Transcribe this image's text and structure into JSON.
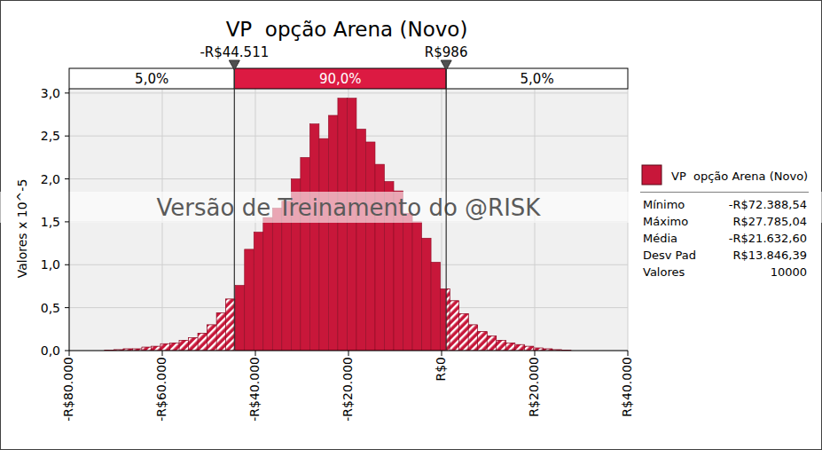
{
  "chart_data": {
    "type": "histogram",
    "title": "VP  opção Arena (Novo)",
    "ylabel": "Valores x 10^-5",
    "series": [
      {
        "name": "VP  opção Arena (Novo)",
        "color": "#c8173a",
        "values": [
          0.005,
          0.01,
          0.02,
          0.02,
          0.04,
          0.05,
          0.08,
          0.09,
          0.12,
          0.15,
          0.2,
          0.3,
          0.44,
          0.6,
          0.76,
          1.18,
          1.38,
          1.55,
          1.66,
          1.74,
          2.0,
          2.25,
          2.64,
          2.47,
          2.74,
          2.94,
          2.94,
          2.58,
          2.43,
          2.17,
          1.97,
          1.86,
          1.6,
          1.5,
          1.31,
          1.03,
          0.72,
          0.58,
          0.43,
          0.3,
          0.22,
          0.17,
          0.12,
          0.09,
          0.07,
          0.05,
          0.03,
          0.02,
          0.01,
          0.005
        ]
      }
    ],
    "bins": [
      -72389,
      -70385,
      -68382,
      -66378,
      -64375,
      -62371,
      -60368,
      -58364,
      -56361,
      -54357,
      -52354,
      -50350,
      -48347,
      -46343,
      -44340,
      -42336,
      -40333,
      -38330,
      -36326,
      -34323,
      -32319,
      -30316,
      -28312,
      -26309,
      -24305,
      -22302,
      -20298,
      -18295,
      -16291,
      -14288,
      -12284,
      -10281,
      -8278,
      -6274,
      -4271,
      -2267,
      -264,
      1740,
      3743,
      5747,
      7750,
      9754,
      11757,
      13761,
      15764,
      17768,
      19771,
      21775,
      23778,
      25781,
      27785
    ],
    "xlim": [
      -80000,
      40000
    ],
    "xticks": [
      {
        "value": -80000,
        "label": "-R$80.000"
      },
      {
        "value": -60000,
        "label": "-R$60.000"
      },
      {
        "value": -40000,
        "label": "-R$40.000"
      },
      {
        "value": -20000,
        "label": "-R$20.000"
      },
      {
        "value": 0,
        "label": "R$0"
      },
      {
        "value": 20000,
        "label": "R$20.000"
      },
      {
        "value": 40000,
        "label": "R$40.000"
      }
    ],
    "ylim": [
      0,
      3.05
    ],
    "yticks": [
      {
        "value": 0,
        "label": "0,0"
      },
      {
        "value": 0.5,
        "label": "0,5"
      },
      {
        "value": 1,
        "label": "1,0"
      },
      {
        "value": 1.5,
        "label": "1,5"
      },
      {
        "value": 2,
        "label": "2,0"
      },
      {
        "value": 2.5,
        "label": "2,5"
      },
      {
        "value": 3,
        "label": "3,0"
      }
    ],
    "grid": true,
    "legend": "right",
    "delimiters": [
      {
        "value": -44511,
        "label": "-R$44.511"
      },
      {
        "value": 986,
        "label": "R$986"
      }
    ],
    "delimiter_percents": [
      {
        "value": 5,
        "label": "5,0%"
      },
      {
        "value": 90,
        "label": "90,0%"
      },
      {
        "value": 5,
        "label": "5,0%"
      }
    ],
    "legend_stats": [
      {
        "label": "Mínimo",
        "text": "-R$72.388,54"
      },
      {
        "label": "Máximo",
        "text": "R$27.785,04"
      },
      {
        "label": "Média",
        "text": "-R$21.632,60"
      },
      {
        "label": "Desv Pad",
        "text": "R$13.846,39"
      },
      {
        "label": "Valores",
        "text": "10000"
      }
    ],
    "watermark": "Versão de Treinamento do @RISK"
  }
}
